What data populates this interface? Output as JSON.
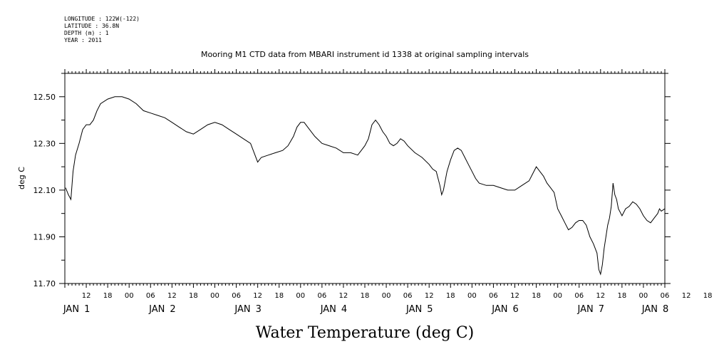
{
  "meta": {
    "longitude": "LONGITUDE : 122W(-122)",
    "latitude": "LATITUDE : 36.8N",
    "depth": "DEPTH (m) : 1",
    "year": "YEAR : 2011"
  },
  "chart_data": {
    "type": "line",
    "title": "Mooring M1 CTD data from MBARI instrument id 1338 at original sampling intervals",
    "xlabel": "Water Temperature (deg C)",
    "ylabel": "deg C",
    "ylim": [
      11.7,
      12.6
    ],
    "xlim_hours": [
      6,
      174
    ],
    "y_ticks": [
      "11.70",
      "11.90",
      "12.10",
      "12.30",
      "12.50"
    ],
    "hour_labels": [
      "12",
      "18",
      "00",
      "06",
      "12",
      "18",
      "00",
      "06",
      "12",
      "18",
      "00",
      "06",
      "12",
      "18",
      "00",
      "06",
      "12",
      "18",
      "00",
      "06",
      "12",
      "18",
      "00",
      "06",
      "12",
      "18",
      "00",
      "06",
      "12",
      "18",
      "00",
      "06"
    ],
    "day_labels": [
      {
        "month": "JAN",
        "day": "1"
      },
      {
        "month": "JAN",
        "day": "2"
      },
      {
        "month": "JAN",
        "day": "3"
      },
      {
        "month": "JAN",
        "day": "4"
      },
      {
        "month": "JAN",
        "day": "5"
      },
      {
        "month": "JAN",
        "day": "6"
      },
      {
        "month": "JAN",
        "day": "7"
      },
      {
        "month": "JAN",
        "day": "8"
      }
    ],
    "x_day_hours": [
      12,
      36,
      60,
      84,
      108,
      132,
      156,
      174
    ],
    "series": [
      {
        "points": [
          [
            6.2,
            12.11
          ],
          [
            7,
            12.08
          ],
          [
            7.7,
            12.06
          ],
          [
            8.3,
            12.18
          ],
          [
            9,
            12.25
          ],
          [
            10,
            12.3
          ],
          [
            11,
            12.36
          ],
          [
            12,
            12.38
          ],
          [
            13,
            12.38
          ],
          [
            14,
            12.4
          ],
          [
            15,
            12.44
          ],
          [
            16,
            12.47
          ],
          [
            18,
            12.49
          ],
          [
            20,
            12.5
          ],
          [
            22,
            12.5
          ],
          [
            24,
            12.49
          ],
          [
            26,
            12.47
          ],
          [
            28,
            12.44
          ],
          [
            30,
            12.43
          ],
          [
            32,
            12.42
          ],
          [
            34,
            12.41
          ],
          [
            36,
            12.39
          ],
          [
            38,
            12.37
          ],
          [
            40,
            12.35
          ],
          [
            42,
            12.34
          ],
          [
            44,
            12.36
          ],
          [
            46,
            12.38
          ],
          [
            48,
            12.39
          ],
          [
            50,
            12.38
          ],
          [
            52,
            12.36
          ],
          [
            54,
            12.34
          ],
          [
            56,
            12.32
          ],
          [
            58,
            12.3
          ],
          [
            59,
            12.26
          ],
          [
            60,
            12.22
          ],
          [
            61,
            12.24
          ],
          [
            63,
            12.25
          ],
          [
            65,
            12.26
          ],
          [
            67,
            12.27
          ],
          [
            68.5,
            12.29
          ],
          [
            70,
            12.33
          ],
          [
            71,
            12.37
          ],
          [
            72,
            12.39
          ],
          [
            73,
            12.39
          ],
          [
            74,
            12.37
          ],
          [
            76,
            12.33
          ],
          [
            78,
            12.3
          ],
          [
            80,
            12.29
          ],
          [
            82,
            12.28
          ],
          [
            84,
            12.26
          ],
          [
            86,
            12.26
          ],
          [
            88,
            12.25
          ],
          [
            89,
            12.27
          ],
          [
            90,
            12.29
          ],
          [
            91,
            12.32
          ],
          [
            92,
            12.38
          ],
          [
            93,
            12.4
          ],
          [
            94,
            12.38
          ],
          [
            95,
            12.35
          ],
          [
            96,
            12.33
          ],
          [
            97,
            12.3
          ],
          [
            98,
            12.29
          ],
          [
            99,
            12.3
          ],
          [
            100,
            12.32
          ],
          [
            101,
            12.31
          ],
          [
            102,
            12.29
          ],
          [
            104,
            12.26
          ],
          [
            106,
            12.24
          ],
          [
            108,
            12.21
          ],
          [
            109,
            12.19
          ],
          [
            110,
            12.18
          ],
          [
            111,
            12.12
          ],
          [
            111.5,
            12.08
          ],
          [
            112,
            12.1
          ],
          [
            113,
            12.18
          ],
          [
            114,
            12.23
          ],
          [
            115,
            12.27
          ],
          [
            116,
            12.28
          ],
          [
            117,
            12.27
          ],
          [
            118,
            12.24
          ],
          [
            119,
            12.21
          ],
          [
            120,
            12.18
          ],
          [
            121,
            12.15
          ],
          [
            122,
            12.13
          ],
          [
            124,
            12.12
          ],
          [
            126,
            12.12
          ],
          [
            128,
            12.11
          ],
          [
            130,
            12.1
          ],
          [
            132,
            12.1
          ],
          [
            134,
            12.12
          ],
          [
            136,
            12.14
          ],
          [
            137,
            12.17
          ],
          [
            138,
            12.2
          ],
          [
            139,
            12.18
          ],
          [
            140,
            12.16
          ],
          [
            141,
            12.13
          ],
          [
            142,
            12.11
          ],
          [
            143,
            12.09
          ],
          [
            144,
            12.02
          ],
          [
            145,
            11.99
          ],
          [
            146,
            11.96
          ],
          [
            147,
            11.93
          ],
          [
            148,
            11.94
          ],
          [
            149,
            11.96
          ],
          [
            150,
            11.97
          ],
          [
            151,
            11.97
          ],
          [
            152,
            11.95
          ],
          [
            153,
            11.9
          ],
          [
            154,
            11.87
          ],
          [
            155,
            11.83
          ],
          [
            155.5,
            11.76
          ],
          [
            156,
            11.74
          ],
          [
            156.5,
            11.78
          ],
          [
            157,
            11.85
          ],
          [
            158,
            11.95
          ],
          [
            158.5,
            11.98
          ],
          [
            159,
            12.03
          ],
          [
            159.5,
            12.13
          ],
          [
            160,
            12.08
          ],
          [
            160.5,
            12.06
          ],
          [
            161,
            12.02
          ],
          [
            162,
            11.99
          ],
          [
            163,
            12.02
          ],
          [
            164,
            12.03
          ],
          [
            165,
            12.05
          ],
          [
            166,
            12.04
          ],
          [
            167,
            12.02
          ],
          [
            168,
            11.99
          ],
          [
            169,
            11.97
          ],
          [
            170,
            11.96
          ],
          [
            171,
            11.98
          ],
          [
            172,
            12.0
          ],
          [
            172.5,
            12.02
          ],
          [
            173,
            12.01
          ],
          [
            174,
            12.02
          ]
        ]
      }
    ]
  }
}
